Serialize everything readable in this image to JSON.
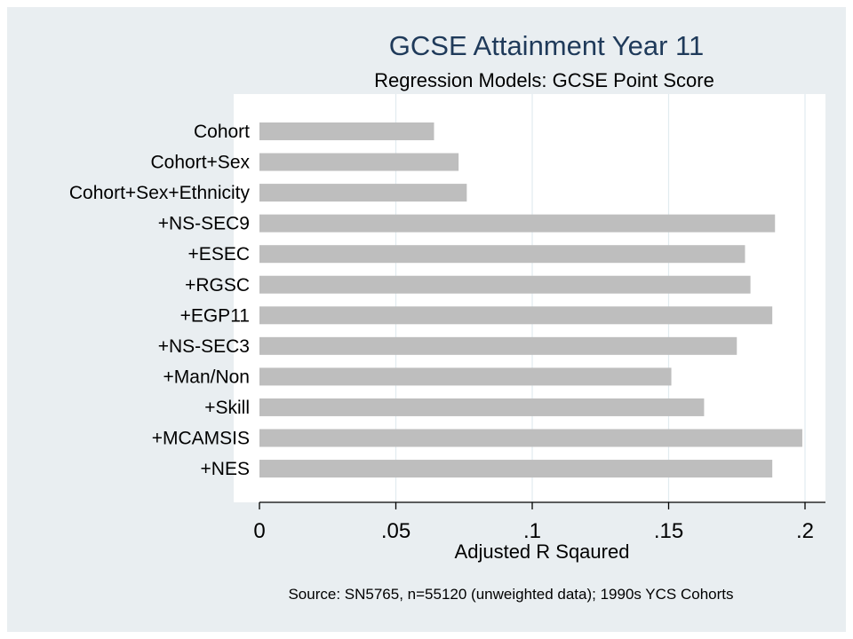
{
  "chart_data": {
    "type": "bar",
    "orientation": "horizontal",
    "title": "GCSE Attainment Year 11",
    "subtitle": "Regression Models: GCSE Point Score",
    "xlabel": "Adjusted R Sqaured",
    "ylabel": "",
    "note": "Source: SN5765, n=55120 (unweighted data); 1990s YCS Cohorts",
    "categories": [
      "Cohort",
      "Cohort+Sex",
      "Cohort+Sex+Ethnicity",
      "+NS-SEC9",
      "+ESEC",
      "+RGSC",
      "+EGP11",
      "+NS-SEC3",
      "+Man/Non",
      "+Skill",
      "+MCAMSIS",
      "+NES"
    ],
    "values": [
      0.064,
      0.073,
      0.076,
      0.189,
      0.178,
      0.18,
      0.188,
      0.175,
      0.151,
      0.163,
      0.199,
      0.188
    ],
    "xlim": [
      0,
      0.2
    ],
    "xticks": [
      0,
      0.05,
      0.1,
      0.15,
      0.2
    ],
    "xtick_labels": [
      "0",
      ".05",
      ".1",
      ".15",
      ".2"
    ],
    "grid": true,
    "legend": "none",
    "colors": {
      "bar": "#bebebe",
      "plot_background": "#ffffff",
      "outer_background": "#e9eef1",
      "grid": "#e1ebef",
      "title": "#1f3a5a"
    }
  }
}
